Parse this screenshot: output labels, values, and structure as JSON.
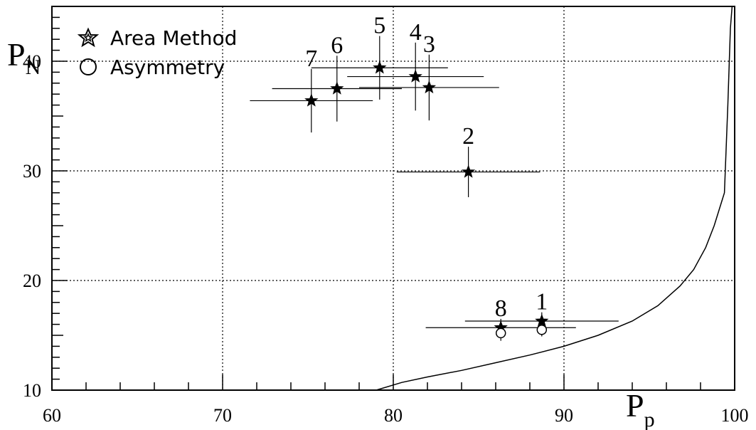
{
  "chart_data": {
    "type": "scatter",
    "title": "",
    "xlabel": {
      "main": "P",
      "sub": "p"
    },
    "ylabel": {
      "main": "P",
      "sub": "N"
    },
    "xlim": [
      60,
      100
    ],
    "ylim": [
      10,
      45
    ],
    "grid": true,
    "x_ticks": [
      60,
      70,
      80,
      90,
      100
    ],
    "y_ticks": [
      10,
      20,
      30,
      40
    ],
    "legend": {
      "placement": "top-left",
      "entries": [
        {
          "marker": "star",
          "label": "Area Method"
        },
        {
          "marker": "circle",
          "label": "Asymmetry"
        }
      ]
    },
    "series": [
      {
        "name": "Area Method",
        "marker": "star",
        "points": [
          {
            "label": "1",
            "x": 88.7,
            "y": 16.3,
            "xerr": 4.5,
            "yerr": 0.8
          },
          {
            "label": "2",
            "x": 84.4,
            "y": 29.9,
            "xerr": 4.2,
            "yerr": 2.3
          },
          {
            "label": "3",
            "x": 82.1,
            "y": 37.6,
            "xerr": 4.1,
            "yerr": 3.0
          },
          {
            "label": "4",
            "x": 81.3,
            "y": 38.6,
            "xerr": 4.0,
            "yerr": 3.1
          },
          {
            "label": "5",
            "x": 79.2,
            "y": 39.4,
            "xerr": 4.0,
            "yerr": 2.9
          },
          {
            "label": "6",
            "x": 76.7,
            "y": 37.5,
            "xerr": 3.8,
            "yerr": 3.0
          },
          {
            "label": "7",
            "x": 75.2,
            "y": 36.4,
            "xerr": 3.6,
            "yerr": 2.9
          },
          {
            "label": "8",
            "x": 86.3,
            "y": 15.7,
            "xerr": 4.4,
            "yerr": 0.8
          }
        ]
      },
      {
        "name": "Asymmetry",
        "marker": "circle",
        "points": [
          {
            "x": 88.7,
            "y": 15.5,
            "yerr": 0.6
          },
          {
            "x": 86.3,
            "y": 15.2,
            "yerr": 0.7
          }
        ]
      }
    ],
    "curve": {
      "x": [
        79.0,
        80.5,
        82.0,
        84.0,
        86.0,
        88.0,
        90.0,
        92.0,
        94.0,
        95.5,
        96.8,
        97.6,
        98.3,
        98.8,
        99.1,
        99.4,
        99.6,
        99.75,
        99.85
      ],
      "y": [
        10.0,
        10.7,
        11.2,
        11.8,
        12.5,
        13.2,
        14.0,
        15.0,
        16.3,
        17.7,
        19.5,
        21.0,
        23.0,
        25.0,
        26.5,
        28.0,
        36.0,
        43.0,
        45.0
      ]
    }
  }
}
